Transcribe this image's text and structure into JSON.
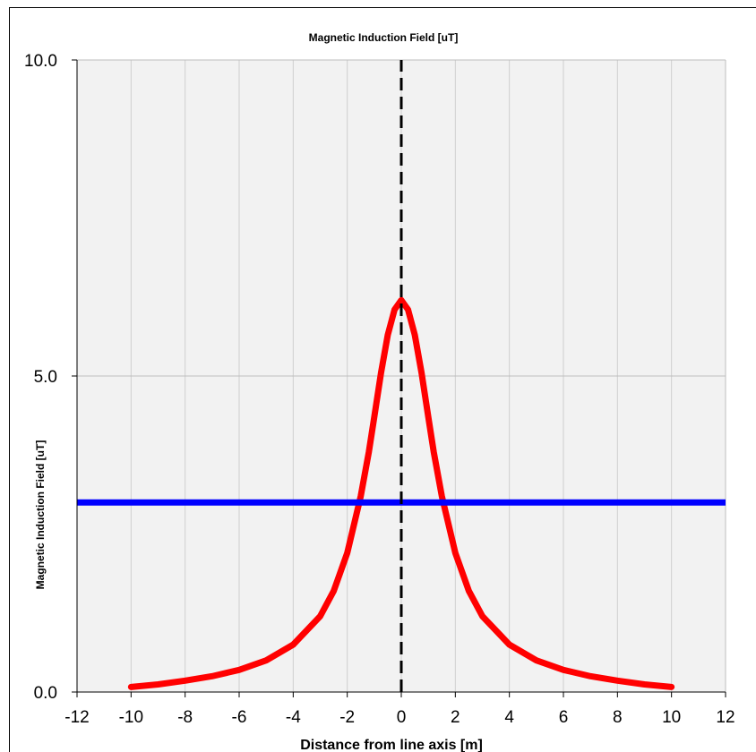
{
  "chart_data": {
    "type": "line",
    "title": "Magnetic Induction Field [uT]",
    "xlabel": "Distance from line axis [m]",
    "ylabel": "Magnetic Induction Field  [uT]",
    "xlim": [
      -12,
      12
    ],
    "ylim": [
      0,
      10
    ],
    "x_ticks": [
      -12,
      -10,
      -8,
      -6,
      -4,
      -2,
      0,
      2,
      4,
      6,
      8,
      10,
      12
    ],
    "y_ticks": [
      "0.0",
      "5.0",
      "10.0"
    ],
    "grid": true,
    "series": [
      {
        "color": "#ff0000",
        "x": [
          -10,
          -9,
          -8,
          -7,
          -6,
          -5,
          -4,
          -3,
          -2.5,
          -2,
          -1.5,
          -1.2,
          -1,
          -0.75,
          -0.5,
          -0.25,
          0,
          0.25,
          0.5,
          0.75,
          1,
          1.2,
          1.5,
          2,
          2.5,
          3,
          4,
          5,
          6,
          7,
          8,
          9,
          10
        ],
        "y": [
          0.08,
          0.12,
          0.18,
          0.25,
          0.35,
          0.5,
          0.75,
          1.2,
          1.6,
          2.2,
          3.1,
          3.8,
          4.35,
          5.05,
          5.65,
          6.05,
          6.2,
          6.05,
          5.65,
          5.05,
          4.35,
          3.8,
          3.1,
          2.2,
          1.6,
          1.2,
          0.75,
          0.5,
          0.35,
          0.25,
          0.18,
          0.12,
          0.08
        ]
      },
      {
        "color": "#0000ff",
        "x": [
          -12,
          12
        ],
        "y": [
          3.0,
          3.0
        ]
      },
      {
        "color": "#000000",
        "style": "dashed",
        "x": [
          0,
          0
        ],
        "y": [
          0,
          10
        ]
      }
    ]
  }
}
